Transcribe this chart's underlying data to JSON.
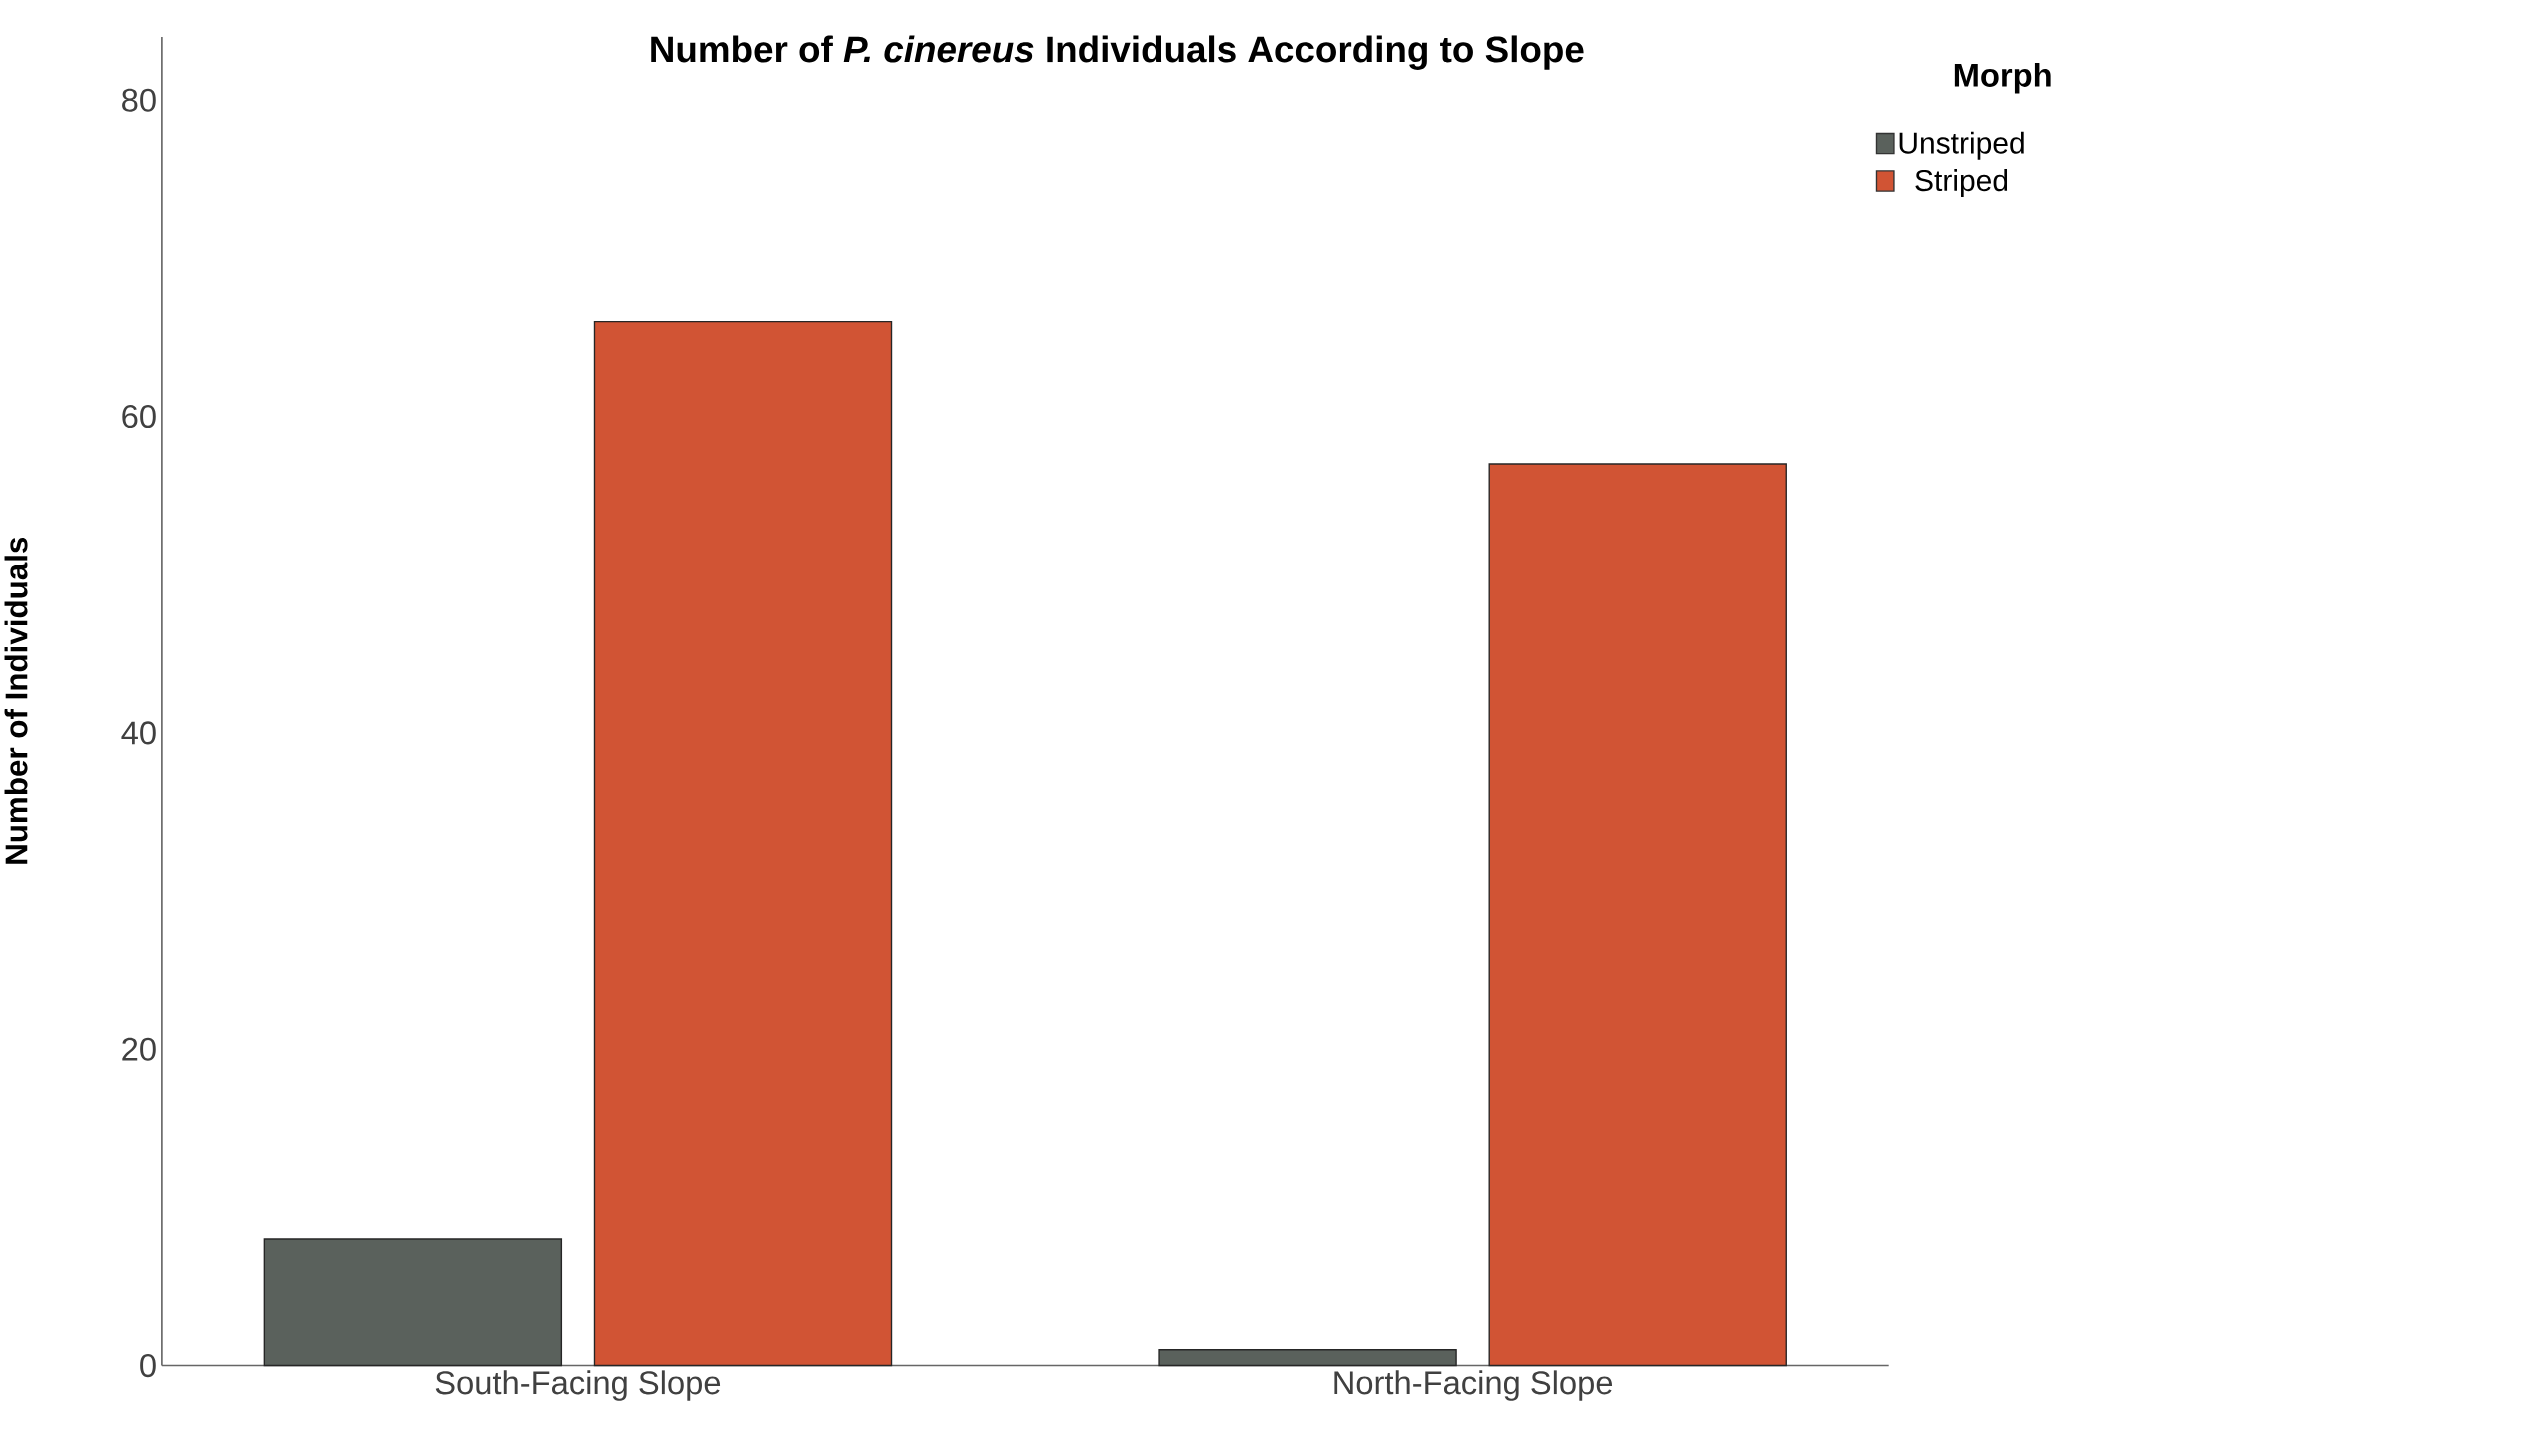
{
  "chart_data": {
    "type": "bar",
    "title": "Number of *P. cinereus* Individuals According to Slope",
    "ylabel": "Number of Individuals",
    "legend_title": "Morph",
    "legend": "top right",
    "categories": [
      "South-Facing Slope",
      "North-Facing Slope"
    ],
    "series": [
      {
        "name": "Unstriped",
        "color": "#5a615c",
        "values": [
          8,
          1
        ]
      },
      {
        "name": "Striped",
        "color": "#d15434",
        "values": [
          66,
          57
        ]
      }
    ],
    "ylim": [
      0,
      84
    ],
    "yticks": [
      0,
      20,
      40,
      60,
      80
    ]
  }
}
